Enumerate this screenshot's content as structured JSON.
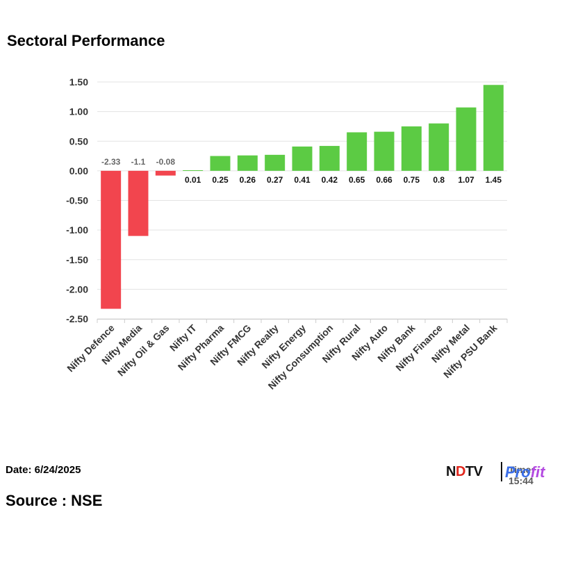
{
  "title": "Sectoral Performance",
  "date_label": "Date: 6/24/2025",
  "source_label": "Source : NSE",
  "brand": {
    "ndtv_prefix": "N",
    "ndtv_dot": "D",
    "ndtv_rest": "TV",
    "profit_a": "Pro",
    "profit_b": "fit",
    "time_overlay": "Time: 15:44"
  },
  "colors": {
    "positive": "#5ccb44",
    "negative": "#f2454e",
    "grid": "#e3e3e3"
  },
  "chart_data": {
    "type": "bar",
    "title": "Sectoral Performance",
    "xlabel": "",
    "ylabel": "",
    "ylim": [
      -2.5,
      1.5
    ],
    "yticks": [
      1.5,
      1.0,
      0.5,
      0.0,
      -0.5,
      -1.0,
      -1.5,
      -2.0,
      -2.5
    ],
    "ytick_labels": [
      "1.50",
      "1.00",
      "0.50",
      "0.00",
      "-0.50",
      "-1.00",
      "-1.50",
      "-2.00",
      "-2.50"
    ],
    "categories": [
      "Nifty Defence",
      "Nifty Media",
      "Nifty Oil & Gas",
      "Nifty IT",
      "Nifty Pharma",
      "Nifty FMCG",
      "Nifty Realty",
      "Nifty Energy",
      "Nifty Consumption",
      "Nifty Rural",
      "Nifty Auto",
      "Nifty Bank",
      "Nifty Finance",
      "Nifty Metal",
      "Nifty PSU Bank"
    ],
    "values": [
      -2.33,
      -1.1,
      -0.08,
      0.01,
      0.25,
      0.26,
      0.27,
      0.41,
      0.42,
      0.65,
      0.66,
      0.75,
      0.8,
      1.07,
      1.45
    ],
    "value_labels": [
      "-2.33",
      "-1.1",
      "-0.08",
      "0.01",
      "0.25",
      "0.26",
      "0.27",
      "0.41",
      "0.42",
      "0.65",
      "0.66",
      "0.75",
      "0.8",
      "1.07",
      "1.45"
    ],
    "grid": true
  }
}
